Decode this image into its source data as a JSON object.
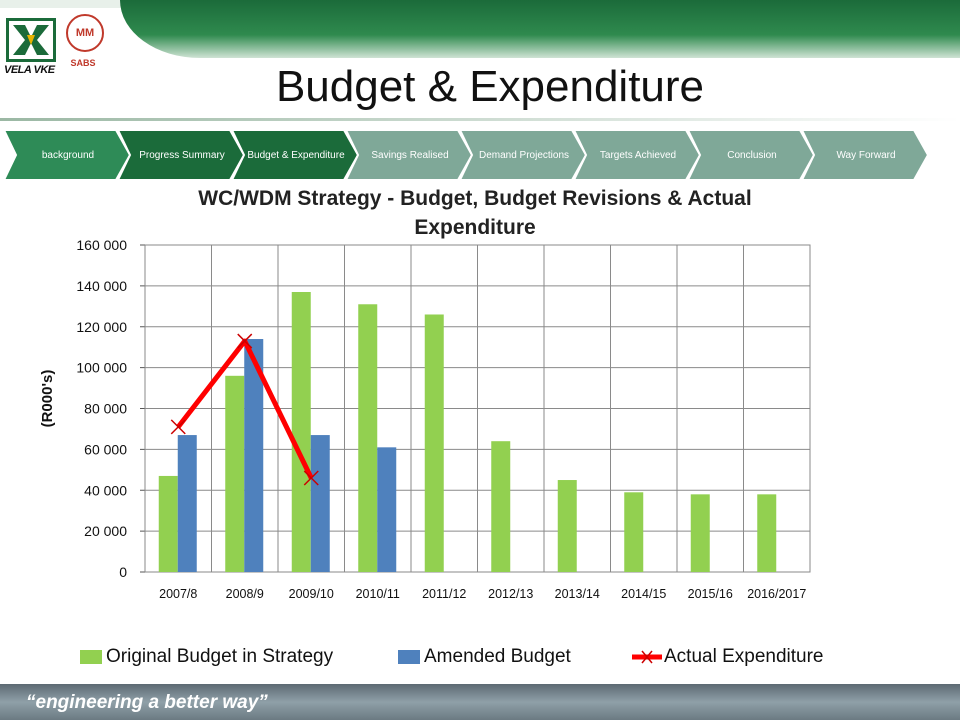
{
  "header": {
    "title": "Budget & Expenditure",
    "logo_primary_text": "VELA VKE",
    "logo_secondary_text": "MM",
    "logo_tertiary_text": "SABS"
  },
  "nav": {
    "tabs": [
      {
        "label": "background",
        "color": "#2e8b57",
        "active": true
      },
      {
        "label": "Progress Summary",
        "color": "#1b6b3a",
        "active": false
      },
      {
        "label": "Budget & Expenditure",
        "color": "#1b6b3a",
        "active": false
      },
      {
        "label": "Savings Realised",
        "color": "#7fa898",
        "active": false
      },
      {
        "label": "Demand Projections",
        "color": "#7fa898",
        "active": false
      },
      {
        "label": "Targets Achieved",
        "color": "#7fa898",
        "active": false
      },
      {
        "label": "Conclusion",
        "color": "#7fa898",
        "active": false
      },
      {
        "label": "Way Forward",
        "color": "#7fa898",
        "active": false
      }
    ]
  },
  "footer": {
    "tagline": "“engineering a better way”"
  },
  "chart_data": {
    "type": "bar",
    "title": "WC/WDM Strategy - Budget, Budget Revisions & Actual Expenditure",
    "xlabel": "",
    "ylabel": "(R000's)",
    "ylim": [
      0,
      160000
    ],
    "yticks": [
      0,
      20000,
      40000,
      60000,
      80000,
      100000,
      120000,
      140000,
      160000
    ],
    "ytick_labels": [
      "0",
      "20 000",
      "40 000",
      "60 000",
      "80 000",
      "100 000",
      "120 000",
      "140 000",
      "160 000"
    ],
    "grid": true,
    "legend_position": "bottom",
    "categories": [
      "2007/8",
      "2008/9",
      "2009/10",
      "2010/11",
      "2011/12",
      "2012/13",
      "2013/14",
      "2014/15",
      "2015/16",
      "2016/2017"
    ],
    "series": [
      {
        "name": "Original Budget in Strategy",
        "kind": "bar",
        "color": "#92d050",
        "values": [
          47000,
          96000,
          137000,
          131000,
          126000,
          64000,
          45000,
          39000,
          38000,
          38000
        ]
      },
      {
        "name": "Amended Budget",
        "kind": "bar",
        "color": "#4f81bd",
        "values": [
          67000,
          114000,
          67000,
          61000,
          null,
          null,
          null,
          null,
          null,
          null
        ]
      },
      {
        "name": "Actual Expenditure",
        "kind": "line",
        "color": "#ff0000",
        "values": [
          71000,
          113000,
          46000,
          null,
          null,
          null,
          null,
          null,
          null,
          null
        ]
      }
    ]
  }
}
